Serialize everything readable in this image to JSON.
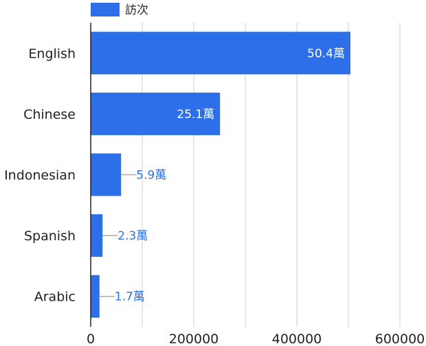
{
  "chart_data": {
    "type": "bar",
    "orientation": "horizontal",
    "categories": [
      "English",
      "Chinese",
      "Indonesian",
      "Spanish",
      "Arabic"
    ],
    "series": [
      {
        "name": "訪次",
        "values": [
          504000,
          251000,
          59000,
          23000,
          17000
        ],
        "labels": [
          "50.4萬",
          "25.1萬",
          "5.9萬",
          "2.3萬",
          "1.7萬"
        ]
      }
    ],
    "x_ticks": [
      "0",
      "200000",
      "400000",
      "600000"
    ],
    "xlim": [
      0,
      600000
    ],
    "grid": true,
    "legend_position": "top-left",
    "colors": {
      "bar": "#2c6fe8",
      "grid": "#dddddd",
      "axis": "#222222",
      "leader": "#aaaaaa",
      "label_inside": "#ffffff",
      "label_outside": "#2c6fe8"
    }
  }
}
